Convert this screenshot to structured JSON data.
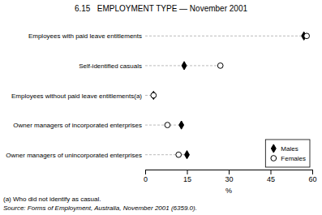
{
  "chart_data": {
    "type": "dot",
    "orientation": "horizontal",
    "title": "6.15   EMPLOYMENT TYPE — November 2001",
    "categories": [
      "Employees with paid leave entitlements",
      "Self-identified casuals",
      "Employees without paid leave entitlements(a)",
      "Owner managers of incorporated enterprises",
      "Owner managers of unincorporated enterprises"
    ],
    "series": [
      {
        "name": "Males",
        "color": "#000000",
        "marker": "diamond",
        "values": [
          57,
          14,
          3,
          13,
          15
        ]
      },
      {
        "name": "Females",
        "color": "#000000",
        "marker": "open-circle",
        "values": [
          58,
          27,
          3,
          8,
          12
        ]
      }
    ],
    "xlabel": "%",
    "xlim": [
      0,
      60
    ],
    "xticks": [
      0,
      15,
      30,
      45,
      60
    ],
    "color": "#aaaaaa",
    "line_style": "dashed",
    "legend": "lower right",
    "grid": false,
    "annotations": [
      "(a) Who did not identify as casual.",
      "Source: Forms of Employment, Australia, November 2001 (6359.0)."
    ]
  }
}
